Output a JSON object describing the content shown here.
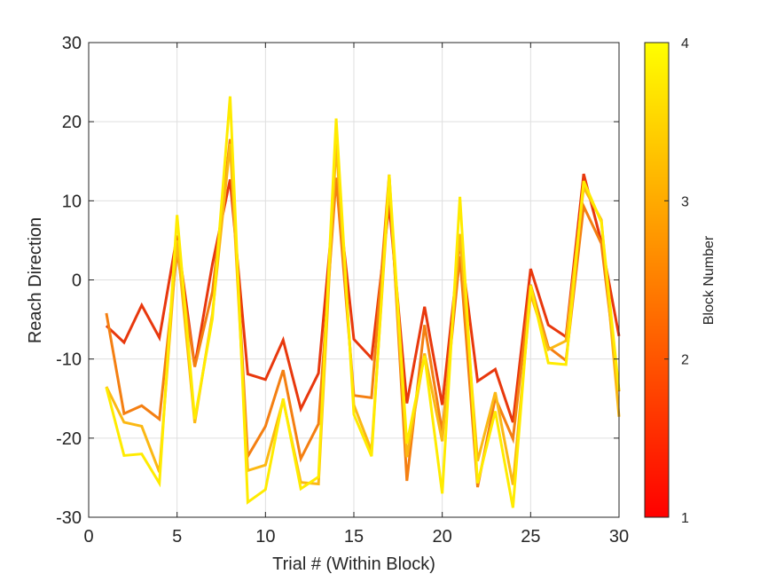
{
  "chart_data": {
    "type": "line",
    "xlabel": "Trial # (Within Block)",
    "ylabel": "Reach Direction",
    "xlim": [
      0,
      30
    ],
    "ylim": [
      -30,
      30
    ],
    "xticks": [
      0,
      5,
      10,
      15,
      20,
      25,
      30
    ],
    "yticks": [
      -30,
      -20,
      -10,
      0,
      10,
      20,
      30
    ],
    "grid": true,
    "x": [
      1,
      2,
      3,
      4,
      5,
      6,
      7,
      8,
      9,
      10,
      11,
      12,
      13,
      14,
      15,
      16,
      17,
      18,
      19,
      20,
      21,
      22,
      23,
      24,
      25,
      26,
      27,
      28,
      29,
      30
    ],
    "series": [
      {
        "values": [
          -5.8,
          -7.9,
          -3.2,
          -7.3,
          5.6,
          -10.9,
          2.0,
          12.7,
          -11.9,
          -12.6,
          -7.6,
          -16.3,
          -11.8,
          12.9,
          -7.5,
          -9.9,
          9.5,
          -15.6,
          -3.4,
          -15.8,
          4.9,
          -12.8,
          -11.3,
          -18.0,
          1.4,
          -5.7,
          -7.2,
          13.4,
          4.8,
          -7.1
        ],
        "color": "#e8380d"
      },
      {
        "values": [
          -4.2,
          -16.9,
          -15.9,
          -17.6,
          3.6,
          -11.0,
          -1.5,
          17.8,
          -22.3,
          -18.5,
          -11.4,
          -22.6,
          -18.2,
          12.9,
          -14.6,
          -14.9,
          13.3,
          -25.4,
          -5.7,
          -19.2,
          3.0,
          -26.2,
          -14.9,
          -20.1,
          -0.6,
          -8.5,
          -10.2,
          9.3,
          4.6,
          -14.1
        ],
        "color": "#f47f12"
      },
      {
        "values": [
          -13.5,
          -18.0,
          -18.5,
          -24.3,
          5.0,
          -18.1,
          -4.3,
          17.2,
          -24.1,
          -23.4,
          -15.2,
          -25.6,
          -25.8,
          17.2,
          -15.8,
          -21.6,
          12.1,
          -22.4,
          -9.3,
          -20.4,
          5.8,
          -22.9,
          -14.2,
          -25.9,
          -1.8,
          -8.8,
          -7.7,
          11.7,
          7.6,
          -17.3
        ],
        "color": "#fbb814"
      },
      {
        "values": [
          -13.6,
          -22.2,
          -22.0,
          -25.7,
          8.2,
          -17.6,
          -4.9,
          23.2,
          -28.1,
          -26.5,
          -15.0,
          -26.4,
          -24.9,
          20.4,
          -17.0,
          -22.3,
          13.3,
          -20.7,
          -9.6,
          -27.0,
          10.5,
          -25.7,
          -16.6,
          -28.8,
          -0.7,
          -10.5,
          -10.7,
          12.5,
          7.3,
          -14.0
        ],
        "color": "#ffeb00"
      }
    ],
    "colorbar": {
      "label": "Block Number",
      "ticks": [
        1,
        2,
        3,
        4
      ],
      "range": [
        1,
        4
      ],
      "colors": [
        "#ff0000",
        "#ff8000",
        "#ffff00"
      ]
    }
  }
}
